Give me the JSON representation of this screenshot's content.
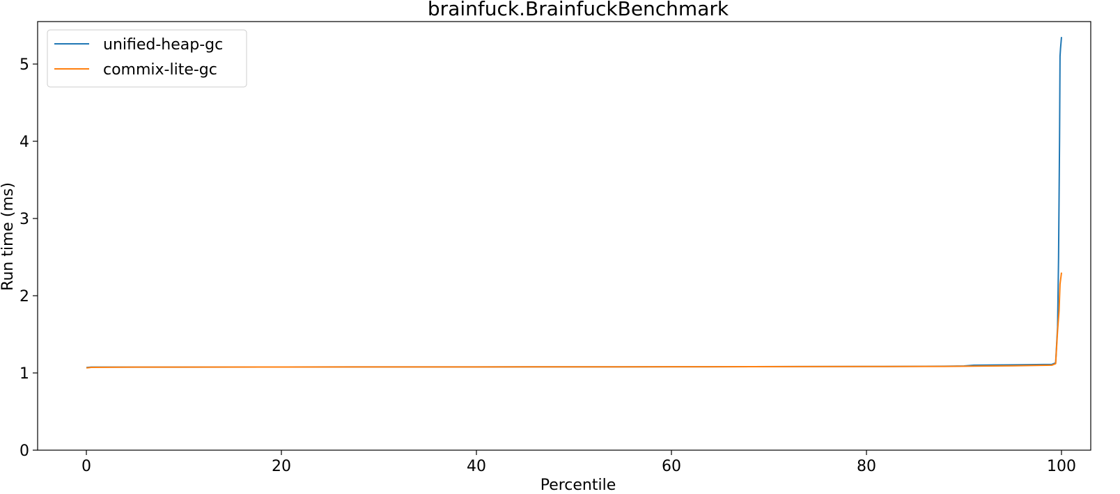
{
  "chart_data": {
    "type": "line",
    "title": "brainfuck.BrainfuckBenchmark",
    "xlabel": "Percentile",
    "ylabel": "Run time (ms)",
    "xlim": [
      -5,
      103
    ],
    "ylim": [
      0,
      5.55
    ],
    "xticks": [
      0,
      20,
      40,
      60,
      80,
      100
    ],
    "yticks": [
      0,
      1,
      2,
      3,
      4,
      5
    ],
    "grid": false,
    "legend_position": "top-left",
    "series": [
      {
        "name": "unified-heap-gc",
        "color": "#1f77b4",
        "x": [
          0,
          0.5,
          5,
          20,
          40,
          60,
          80,
          88,
          90,
          91,
          95,
          99,
          99.4,
          99.6,
          99.7,
          99.8,
          99.85,
          99.9,
          100
        ],
        "y": [
          1.07,
          1.075,
          1.075,
          1.077,
          1.078,
          1.08,
          1.083,
          1.087,
          1.09,
          1.1,
          1.105,
          1.11,
          1.13,
          1.6,
          2.5,
          4.0,
          5.1,
          5.2,
          5.35
        ]
      },
      {
        "name": "commix-lite-gc",
        "color": "#ff7f0e",
        "x": [
          0,
          0.5,
          5,
          20,
          40,
          60,
          80,
          88,
          90,
          95,
          99,
          99.4,
          99.6,
          99.75,
          99.85,
          100
        ],
        "y": [
          1.065,
          1.072,
          1.075,
          1.077,
          1.078,
          1.08,
          1.083,
          1.085,
          1.087,
          1.093,
          1.1,
          1.12,
          1.55,
          1.8,
          2.15,
          2.3
        ]
      }
    ]
  }
}
